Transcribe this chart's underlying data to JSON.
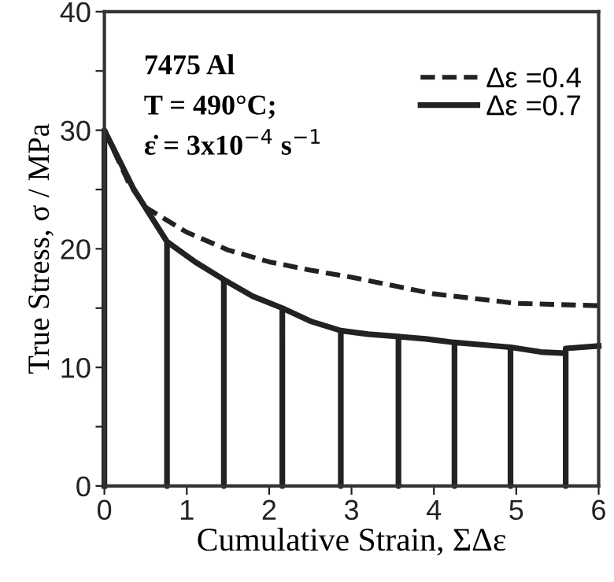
{
  "chart_data": {
    "type": "line",
    "xlabel": "Cumulative Strain, ΣΔε",
    "ylabel": "True Stress, σ / MPa",
    "annotations": [
      "7475 Al",
      "T = 490°C;",
      "ε̇ = 3x10$^{−4}$ s$^{−1}$"
    ],
    "xlim": [
      0,
      6
    ],
    "xticks": [
      0,
      1,
      2,
      3,
      4,
      5,
      6
    ],
    "ylim": [
      0,
      40
    ],
    "yticks": [
      0,
      {
        "value": 5,
        "label": null
      },
      10,
      {
        "value": 15,
        "label": null
      },
      20,
      {
        "value": 25,
        "label": null
      },
      30,
      {
        "value": 35,
        "label": null
      },
      40
    ],
    "legend": "top right",
    "grid": false,
    "marker": "none",
    "series": [
      {
        "name": "Δε =0.4",
        "color": "#222222",
        "line_style": "dashed",
        "x": [
          0,
          0.3,
          0.5,
          1,
          1.5,
          2,
          2.5,
          3,
          3.5,
          4,
          4.5,
          5,
          5.5,
          6
        ],
        "values": [
          30,
          25.5,
          23.5,
          21.4,
          19.9,
          18.9,
          18.2,
          17.6,
          16.9,
          16.2,
          15.8,
          15.4,
          15.3,
          15.2
        ]
      },
      {
        "name": "Δε =0.7",
        "color": "#222222",
        "line_style": "solid",
        "x": [
          0,
          0,
          0.35,
          0.76,
          0.76,
          0.76,
          1.1,
          1.45,
          1.45,
          1.45,
          1.8,
          2.16,
          2.16,
          2.16,
          2.5,
          2.87,
          2.87,
          2.87,
          3.2,
          3.57,
          3.57,
          3.57,
          3.9,
          4.25,
          4.25,
          4.25,
          4.6,
          4.93,
          4.93,
          4.93,
          5.3,
          5.6,
          5.6,
          5.6,
          6
        ],
        "values": [
          0,
          30,
          25.1,
          20.6,
          0,
          20.6,
          18.9,
          17.4,
          0,
          17.4,
          16.0,
          15.0,
          0,
          15.0,
          13.9,
          13.1,
          0,
          13.1,
          12.8,
          12.6,
          0,
          12.6,
          12.4,
          12.1,
          0,
          12.1,
          11.9,
          11.7,
          0,
          11.7,
          11.3,
          11.2,
          0,
          11.6,
          11.8
        ]
      }
    ]
  }
}
